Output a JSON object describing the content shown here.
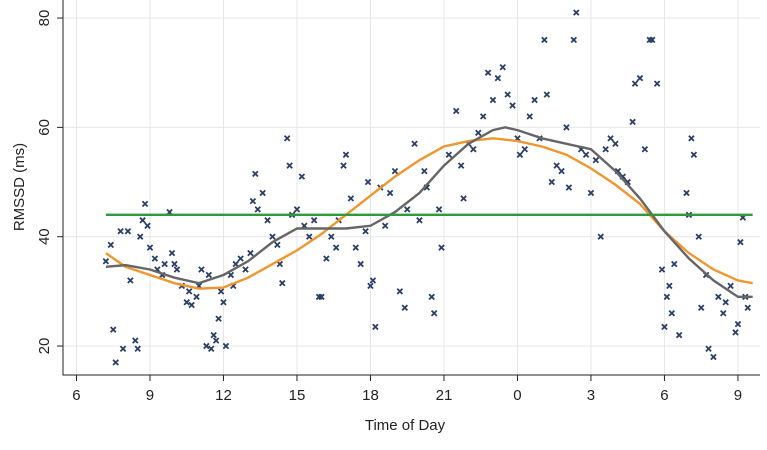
{
  "chart_data": {
    "type": "scatter",
    "x_label": "Time of Day",
    "y_label": "RMSSD (ms)",
    "grid": true,
    "xlim": [
      5.45,
      33.9
    ],
    "ylim": [
      14.7,
      83.3
    ],
    "xticks": [
      6,
      9,
      12,
      15,
      18,
      21,
      {
        "value": 24,
        "label": "0"
      },
      {
        "value": 27,
        "label": "3"
      },
      {
        "value": 30,
        "label": "6"
      },
      {
        "value": 33,
        "label": "9"
      }
    ],
    "yticks": [
      20,
      40,
      60,
      80
    ],
    "points": {
      "color": "#2b3f66",
      "x": [
        7.2,
        7.4,
        7.5,
        7.6,
        7.8,
        7.9,
        8.1,
        8.2,
        8.4,
        8.5,
        8.6,
        8.7,
        8.8,
        8.9,
        9.0,
        9.2,
        9.3,
        9.5,
        9.6,
        9.8,
        9.9,
        10.0,
        10.1,
        10.3,
        10.5,
        10.6,
        10.7,
        10.9,
        11.0,
        11.1,
        11.3,
        11.4,
        11.5,
        11.6,
        11.7,
        11.8,
        11.9,
        12.0,
        12.1,
        12.3,
        12.4,
        12.5,
        12.7,
        12.9,
        13.1,
        13.2,
        13.3,
        13.4,
        13.6,
        13.8,
        14.0,
        14.2,
        14.3,
        14.4,
        14.6,
        14.7,
        14.8,
        15.0,
        15.2,
        15.3,
        15.5,
        15.7,
        15.9,
        16.0,
        16.2,
        16.4,
        16.6,
        16.7,
        16.9,
        17.0,
        17.2,
        17.4,
        17.6,
        17.8,
        17.9,
        18.0,
        18.1,
        18.2,
        18.4,
        18.6,
        18.8,
        19.0,
        19.2,
        19.4,
        19.5,
        19.8,
        20.0,
        20.2,
        20.3,
        20.5,
        20.6,
        20.8,
        20.9,
        21.2,
        21.5,
        21.7,
        21.8,
        22.0,
        22.2,
        22.4,
        22.6,
        22.8,
        23.0,
        23.2,
        23.4,
        23.6,
        23.8,
        24.0,
        24.1,
        24.3,
        24.5,
        24.7,
        24.9,
        25.1,
        25.2,
        25.4,
        25.6,
        25.8,
        26.0,
        26.1,
        26.3,
        26.4,
        26.6,
        26.8,
        27.0,
        27.2,
        27.4,
        27.6,
        27.8,
        28.0,
        28.1,
        28.3,
        28.5,
        28.7,
        28.8,
        29.0,
        29.2,
        29.4,
        29.5,
        29.7,
        29.9,
        30.0,
        30.1,
        30.2,
        30.3,
        30.4,
        30.6,
        30.9,
        31.0,
        31.1,
        31.2,
        31.4,
        31.5,
        31.7,
        31.8,
        32.0,
        32.2,
        32.4,
        32.5,
        32.7,
        32.9,
        33.0,
        33.1,
        33.2,
        33.3,
        33.4
      ],
      "y": [
        35.5,
        38.5,
        23,
        17,
        41,
        19.5,
        41,
        32,
        21,
        19.5,
        40,
        43,
        46,
        42,
        38,
        36,
        34,
        33,
        35,
        44.5,
        37,
        35,
        34,
        31,
        28,
        30,
        27.5,
        29,
        31,
        34,
        20,
        33,
        19.5,
        22,
        21,
        25,
        30,
        28,
        20,
        33,
        31,
        35,
        36,
        34,
        37,
        46.5,
        51.5,
        45,
        48,
        43,
        40,
        38.5,
        35,
        31.5,
        58,
        53,
        44,
        45,
        51,
        42,
        40,
        43,
        29,
        29,
        36,
        40,
        38,
        43,
        53,
        55,
        47,
        38,
        35,
        41,
        50,
        31,
        32,
        23.5,
        49,
        42,
        48,
        52,
        30,
        27,
        45,
        57,
        43,
        52,
        49,
        29,
        26,
        45,
        38,
        55,
        63,
        53,
        47,
        57,
        56,
        59,
        62,
        70,
        65,
        69,
        71,
        66,
        64,
        58,
        55,
        56,
        62,
        65,
        58,
        76,
        66,
        50,
        53,
        52,
        60,
        49,
        76,
        81,
        56,
        55,
        48,
        54,
        40,
        56,
        58,
        57,
        52,
        51,
        50,
        61,
        68,
        69,
        56,
        76,
        76,
        68,
        34,
        23.5,
        29,
        31,
        26,
        35,
        22,
        48,
        44,
        58,
        55,
        40,
        27,
        33,
        19.5,
        18,
        29,
        26,
        28,
        31,
        22.5,
        24,
        39,
        43.5,
        29,
        27
      ]
    },
    "lines": [
      {
        "color": "#f0962e",
        "x": [
          7.2,
          8,
          9,
          10,
          11,
          12,
          13,
          14,
          15,
          16,
          17,
          18,
          19,
          20,
          21,
          22,
          23,
          24,
          25,
          26,
          27,
          28,
          29,
          30,
          31,
          32,
          33,
          33.6
        ],
        "values": [
          37,
          34.5,
          33,
          31.5,
          30.5,
          30.7,
          32.5,
          35,
          37.5,
          40.5,
          44,
          47.5,
          51,
          54,
          56.5,
          57.5,
          58,
          57.5,
          56.5,
          55,
          52.5,
          49.5,
          46,
          41,
          37,
          34,
          32,
          31.5
        ]
      },
      {
        "color": "#666666",
        "x": [
          7.2,
          8,
          9,
          10,
          11,
          12,
          13,
          14,
          15,
          16,
          17,
          18,
          19,
          20,
          21,
          22,
          23,
          23.5,
          24,
          25,
          26,
          27,
          28,
          29,
          30,
          31,
          32,
          33,
          33.6
        ],
        "values": [
          34.5,
          34.8,
          34,
          32.5,
          31.5,
          33,
          35.5,
          39,
          41.5,
          41.5,
          41.5,
          42,
          44.5,
          48,
          53,
          57,
          59.5,
          60,
          59.5,
          58,
          57,
          56,
          52,
          47,
          41,
          36,
          32,
          29,
          29
        ]
      },
      {
        "color": "#2e9a3c",
        "x": [
          7.2,
          33.6
        ],
        "values": [
          44,
          44
        ]
      }
    ]
  }
}
